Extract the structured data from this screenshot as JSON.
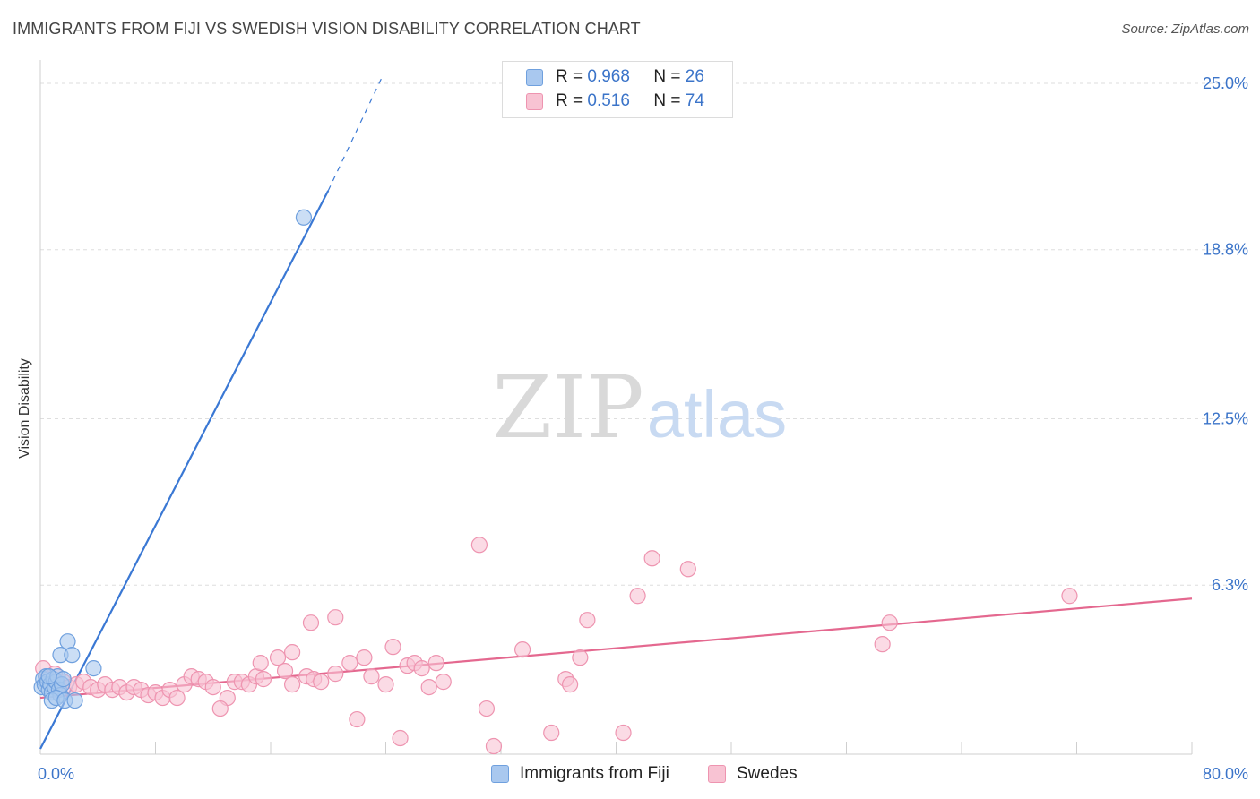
{
  "header": {
    "title": "IMMIGRANTS FROM FIJI VS SWEDISH VISION DISABILITY CORRELATION CHART",
    "source": "Source: ZipAtlas.com"
  },
  "watermark": {
    "zip": "ZIP",
    "atlas": "atlas"
  },
  "legend": {
    "rows": [
      {
        "r_label": "R = ",
        "r_value": "0.968",
        "n_label": "N = ",
        "n_value": "26",
        "color": "#a9c8ef",
        "border": "#6fa0de"
      },
      {
        "r_label": "R = ",
        "r_value": "0.516",
        "n_label": "N = ",
        "n_value": "74",
        "color": "#f8c3d3",
        "border": "#ee94b0"
      }
    ]
  },
  "bottom_legend": {
    "items": [
      {
        "label": "Immigrants from Fiji",
        "color": "#a9c8ef",
        "border": "#6fa0de"
      },
      {
        "label": "Swedes",
        "color": "#f8c3d3",
        "border": "#ee94b0"
      }
    ]
  },
  "chart_data": {
    "type": "scatter",
    "title": "IMMIGRANTS FROM FIJI VS SWEDISH VISION DISABILITY CORRELATION CHART",
    "xlabel": "",
    "ylabel": "Vision Disability",
    "xlim": [
      0,
      80
    ],
    "ylim": [
      0,
      25.6
    ],
    "x_tick_labels": [
      "0.0%",
      "80.0%"
    ],
    "y_ticks": [
      6.3,
      12.5,
      18.8,
      25.0
    ],
    "y_tick_labels": [
      "6.3%",
      "12.5%",
      "18.8%",
      "25.0%"
    ],
    "grid": true,
    "legend_position": "top-center",
    "colors": {
      "fiji": "#3a78d4",
      "swedes": "#e4688f",
      "axis_labels": "#3b74c9"
    },
    "series": [
      {
        "name": "Immigrants from Fiji",
        "color": "#a9c8ef",
        "stroke": "#6fa0de",
        "points": [
          [
            0.1,
            2.5
          ],
          [
            0.2,
            2.8
          ],
          [
            0.3,
            2.6
          ],
          [
            0.4,
            2.9
          ],
          [
            0.5,
            2.7
          ],
          [
            0.6,
            2.4
          ],
          [
            0.7,
            2.6
          ],
          [
            0.8,
            2.3
          ],
          [
            0.9,
            2.8
          ],
          [
            1.0,
            2.5
          ],
          [
            1.1,
            2.7
          ],
          [
            1.2,
            2.9
          ],
          [
            1.3,
            2.4
          ],
          [
            1.4,
            2.2
          ],
          [
            1.5,
            2.6
          ],
          [
            1.6,
            2.8
          ],
          [
            0.8,
            2.0
          ],
          [
            1.1,
            2.1
          ],
          [
            1.4,
            3.7
          ],
          [
            1.7,
            2.0
          ],
          [
            1.9,
            4.2
          ],
          [
            2.2,
            3.7
          ],
          [
            2.4,
            2.0
          ],
          [
            3.7,
            3.2
          ],
          [
            18.3,
            20.0
          ],
          [
            0.6,
            2.9
          ]
        ],
        "trend": {
          "x0": 0.0,
          "y0": 0.2,
          "x1": 20.0,
          "y1": 21.0,
          "dash_x1": 23.8,
          "dash_y1": 25.3
        }
      },
      {
        "name": "Swedes",
        "color": "#f8c3d3",
        "stroke": "#ee94b0",
        "points": [
          [
            0.2,
            3.2
          ],
          [
            0.5,
            2.8
          ],
          [
            0.8,
            2.6
          ],
          [
            1.0,
            3.0
          ],
          [
            1.3,
            2.6
          ],
          [
            1.6,
            2.7
          ],
          [
            2.0,
            2.5
          ],
          [
            2.5,
            2.6
          ],
          [
            3.0,
            2.7
          ],
          [
            3.5,
            2.5
          ],
          [
            4.0,
            2.4
          ],
          [
            4.5,
            2.6
          ],
          [
            5.0,
            2.4
          ],
          [
            5.5,
            2.5
          ],
          [
            6.0,
            2.3
          ],
          [
            6.5,
            2.5
          ],
          [
            7.0,
            2.4
          ],
          [
            7.5,
            2.2
          ],
          [
            8.0,
            2.3
          ],
          [
            8.5,
            2.1
          ],
          [
            9.0,
            2.4
          ],
          [
            9.5,
            2.1
          ],
          [
            10.0,
            2.6
          ],
          [
            10.5,
            2.9
          ],
          [
            11.0,
            2.8
          ],
          [
            11.5,
            2.7
          ],
          [
            12.0,
            2.5
          ],
          [
            13.0,
            2.1
          ],
          [
            13.5,
            2.7
          ],
          [
            14.0,
            2.7
          ],
          [
            14.5,
            2.6
          ],
          [
            15.0,
            2.9
          ],
          [
            15.5,
            2.8
          ],
          [
            16.5,
            3.6
          ],
          [
            17.0,
            3.1
          ],
          [
            17.5,
            2.6
          ],
          [
            18.5,
            2.9
          ],
          [
            19.0,
            2.8
          ],
          [
            19.5,
            2.7
          ],
          [
            20.5,
            3.0
          ],
          [
            21.5,
            3.4
          ],
          [
            22.0,
            1.3
          ],
          [
            22.5,
            3.6
          ],
          [
            23.0,
            2.9
          ],
          [
            24.0,
            2.6
          ],
          [
            24.5,
            4.0
          ],
          [
            25.0,
            0.6
          ],
          [
            25.5,
            3.3
          ],
          [
            26.0,
            3.4
          ],
          [
            26.5,
            3.2
          ],
          [
            27.0,
            2.5
          ],
          [
            27.5,
            3.4
          ],
          [
            28.0,
            2.7
          ],
          [
            30.5,
            7.8
          ],
          [
            31.0,
            1.7
          ],
          [
            31.5,
            0.3
          ],
          [
            33.5,
            3.9
          ],
          [
            35.5,
            0.8
          ],
          [
            36.5,
            2.8
          ],
          [
            36.8,
            2.6
          ],
          [
            37.5,
            3.6
          ],
          [
            38.0,
            5.0
          ],
          [
            40.5,
            0.8
          ],
          [
            41.5,
            5.9
          ],
          [
            42.5,
            7.3
          ],
          [
            45.0,
            6.9
          ],
          [
            58.5,
            4.1
          ],
          [
            59.0,
            4.9
          ],
          [
            71.5,
            5.9
          ],
          [
            20.5,
            5.1
          ],
          [
            18.8,
            4.9
          ],
          [
            17.5,
            3.8
          ],
          [
            12.5,
            1.7
          ],
          [
            15.3,
            3.4
          ]
        ],
        "trend": {
          "x0": 0.0,
          "y0": 2.1,
          "x1": 80.0,
          "y1": 5.8
        }
      }
    ]
  }
}
